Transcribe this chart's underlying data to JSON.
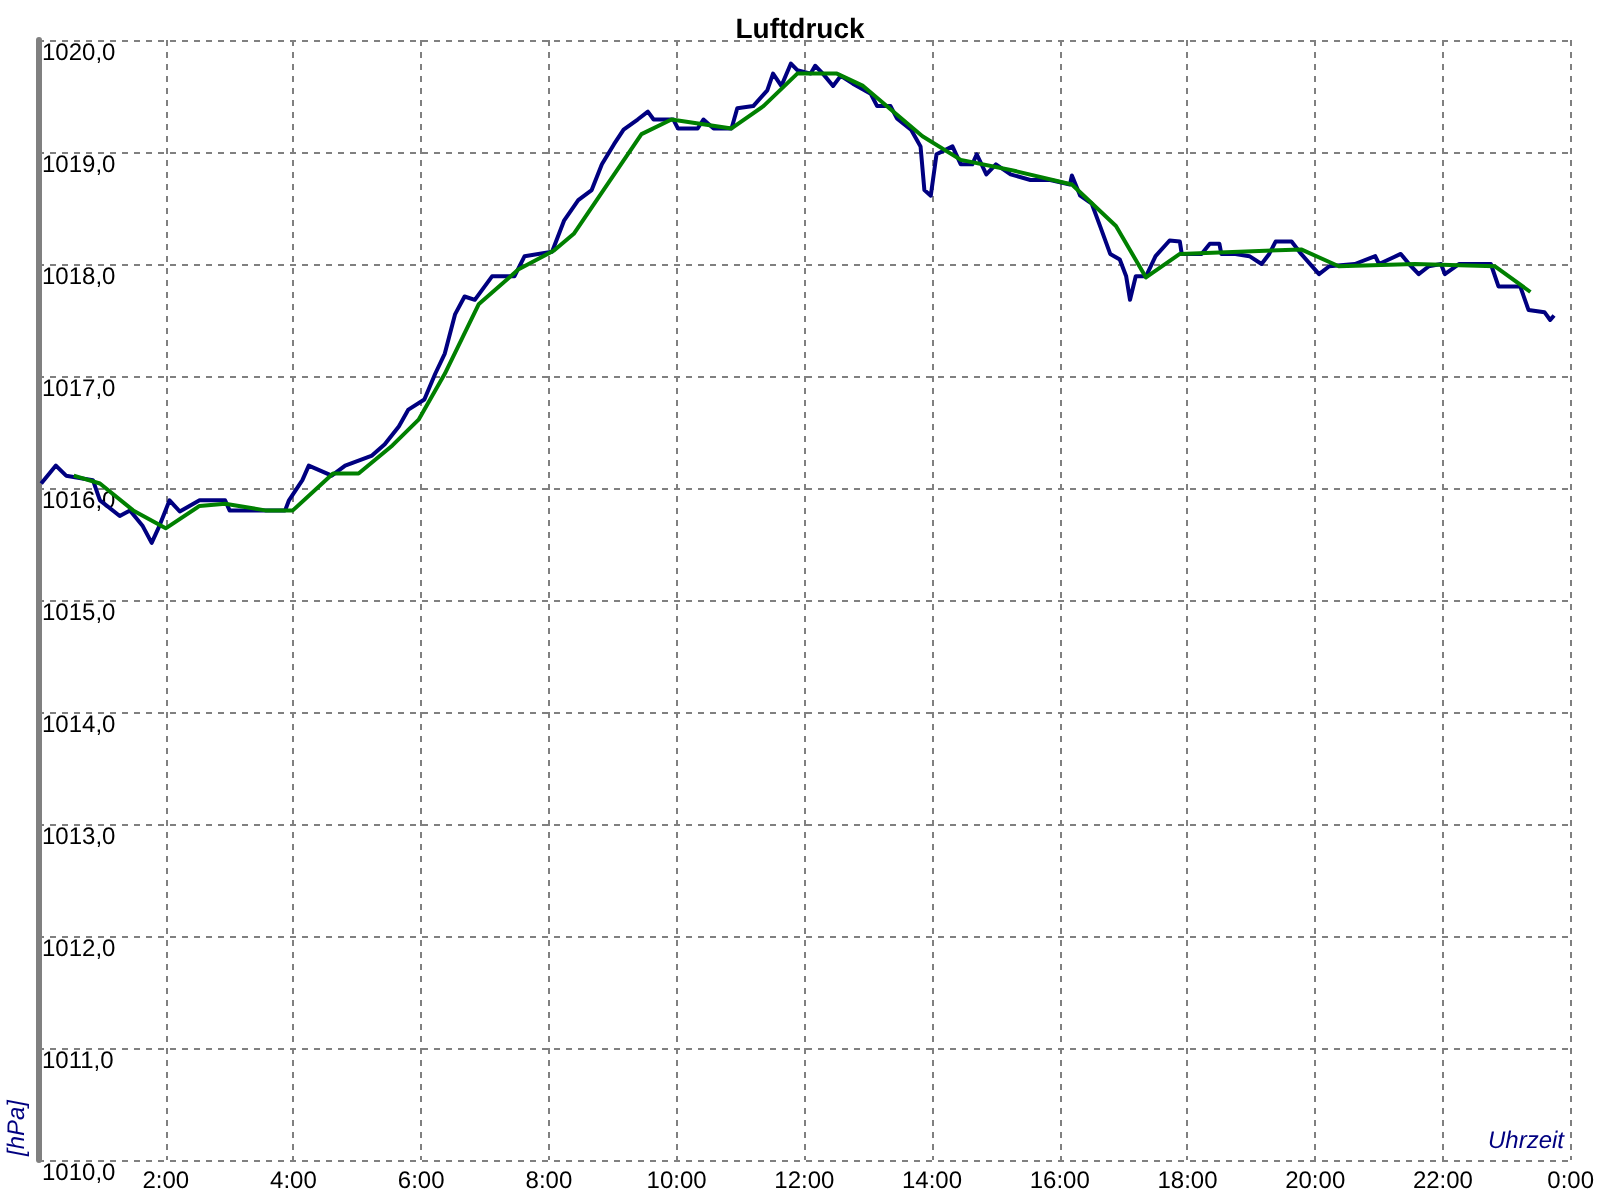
{
  "chart_data": {
    "type": "line",
    "title": "Luftdruck",
    "xlabel": "Uhrzeit",
    "ylabel": "[hPa]",
    "xlim": [
      0,
      24
    ],
    "ylim": [
      1010,
      1020
    ],
    "xticks": [
      {
        "value": 0,
        "label": null
      },
      {
        "value": 2,
        "label": "2:00"
      },
      {
        "value": 4,
        "label": "4:00"
      },
      {
        "value": 6,
        "label": "6:00"
      },
      {
        "value": 8,
        "label": "8:00"
      },
      {
        "value": 10,
        "label": "10:00"
      },
      {
        "value": 12,
        "label": "12:00"
      },
      {
        "value": 14,
        "label": "14:00"
      },
      {
        "value": 16,
        "label": "16:00"
      },
      {
        "value": 18,
        "label": "18:00"
      },
      {
        "value": 20,
        "label": "20:00"
      },
      {
        "value": 22,
        "label": "22:00"
      },
      {
        "value": 24,
        "label": "0:00"
      }
    ],
    "yticks": [
      {
        "value": 1010,
        "label": "1010,0"
      },
      {
        "value": 1011,
        "label": "1011,0"
      },
      {
        "value": 1012,
        "label": "1012,0"
      },
      {
        "value": 1013,
        "label": "1013,0"
      },
      {
        "value": 1014,
        "label": "1014,0"
      },
      {
        "value": 1015,
        "label": "1015,0"
      },
      {
        "value": 1016,
        "label": "1016,0"
      },
      {
        "value": 1017,
        "label": "1017,0"
      },
      {
        "value": 1018,
        "label": "1018,0"
      },
      {
        "value": 1019,
        "label": "1019,0"
      },
      {
        "value": 1020,
        "label": "1020,0"
      }
    ],
    "grid": true,
    "marker": "none",
    "line_style": "solid",
    "series": [
      {
        "color": "#000080",
        "x": [
          0.05,
          0.28,
          0.44,
          0.86,
          0.97,
          1.28,
          1.44,
          1.64,
          1.78,
          1.9,
          2.06,
          2.22,
          2.53,
          2.93,
          3.0,
          3.87,
          3.93,
          4.14,
          4.24,
          4.6,
          4.81,
          5.23,
          5.43,
          5.65,
          5.8,
          6.05,
          6.22,
          6.37,
          6.53,
          6.68,
          6.84,
          7.11,
          7.46,
          7.62,
          8.05,
          8.24,
          8.46,
          8.67,
          8.83,
          9.02,
          9.17,
          9.39,
          9.55,
          9.64,
          9.95,
          10.02,
          10.33,
          10.42,
          10.58,
          10.86,
          10.95,
          11.2,
          11.42,
          11.51,
          11.64,
          11.79,
          11.89,
          12.1,
          12.17,
          12.29,
          12.45,
          12.57,
          12.76,
          13.04,
          13.14,
          13.35,
          13.45,
          13.67,
          13.82,
          13.88,
          13.98,
          14.07,
          14.32,
          14.45,
          14.63,
          14.7,
          14.85,
          15.0,
          15.23,
          15.54,
          15.85,
          16.16,
          16.19,
          16.32,
          16.5,
          16.63,
          16.79,
          16.94,
          17.04,
          17.1,
          17.19,
          17.35,
          17.5,
          17.72,
          17.88,
          17.91,
          18.22,
          18.35,
          18.5,
          18.53,
          18.75,
          18.97,
          19.16,
          19.28,
          19.38,
          19.63,
          19.78,
          20.06,
          20.22,
          20.62,
          20.94,
          21.0,
          21.34,
          21.47,
          21.62,
          21.78,
          21.97,
          22.03,
          22.25,
          22.75,
          22.87,
          23.21,
          23.34,
          23.59,
          23.68,
          23.74
        ],
        "values": [
          1016.04,
          1016.2,
          1016.11,
          1016.07,
          1015.89,
          1015.75,
          1015.8,
          1015.66,
          1015.51,
          1015.66,
          1015.89,
          1015.79,
          1015.89,
          1015.89,
          1015.8,
          1015.8,
          1015.89,
          1016.07,
          1016.2,
          1016.11,
          1016.2,
          1016.29,
          1016.39,
          1016.55,
          1016.7,
          1016.79,
          1017.02,
          1017.2,
          1017.55,
          1017.71,
          1017.68,
          1017.89,
          1017.89,
          1018.07,
          1018.11,
          1018.39,
          1018.57,
          1018.66,
          1018.89,
          1019.07,
          1019.2,
          1019.29,
          1019.36,
          1019.29,
          1019.29,
          1019.21,
          1019.21,
          1019.29,
          1019.21,
          1019.21,
          1019.39,
          1019.41,
          1019.55,
          1019.7,
          1019.59,
          1019.79,
          1019.73,
          1019.7,
          1019.77,
          1019.7,
          1019.59,
          1019.68,
          1019.61,
          1019.52,
          1019.41,
          1019.41,
          1019.3,
          1019.2,
          1019.05,
          1018.66,
          1018.61,
          1018.98,
          1019.05,
          1018.89,
          1018.89,
          1018.98,
          1018.8,
          1018.89,
          1018.8,
          1018.75,
          1018.75,
          1018.71,
          1018.79,
          1018.61,
          1018.54,
          1018.34,
          1018.09,
          1018.04,
          1017.89,
          1017.68,
          1017.89,
          1017.89,
          1018.07,
          1018.21,
          1018.2,
          1018.09,
          1018.09,
          1018.18,
          1018.18,
          1018.09,
          1018.09,
          1018.07,
          1018.0,
          1018.09,
          1018.2,
          1018.2,
          1018.09,
          1017.91,
          1017.98,
          1018.0,
          1018.07,
          1018.0,
          1018.09,
          1018.0,
          1017.91,
          1017.98,
          1018.0,
          1017.91,
          1018.0,
          1018.0,
          1017.8,
          1017.8,
          1017.59,
          1017.57,
          1017.5,
          1017.54
        ]
      },
      {
        "color": "#008000",
        "x": [
          0.56,
          0.97,
          1.49,
          2.0,
          2.53,
          2.93,
          3.56,
          3.99,
          4.62,
          5.02,
          5.55,
          5.96,
          6.37,
          6.9,
          7.52,
          8.08,
          8.39,
          9.45,
          9.92,
          10.86,
          11.36,
          11.89,
          12.51,
          12.92,
          13.85,
          14.45,
          15.23,
          16.19,
          16.88,
          17.35,
          17.88,
          19.78,
          20.37,
          21.56,
          22.81,
          23.37
        ],
        "values": [
          1016.11,
          1016.04,
          1015.8,
          1015.64,
          1015.84,
          1015.86,
          1015.8,
          1015.8,
          1016.13,
          1016.13,
          1016.38,
          1016.61,
          1017.02,
          1017.64,
          1017.95,
          1018.12,
          1018.27,
          1019.16,
          1019.29,
          1019.21,
          1019.41,
          1019.7,
          1019.7,
          1019.59,
          1019.14,
          1018.93,
          1018.84,
          1018.71,
          1018.34,
          1017.88,
          1018.09,
          1018.13,
          1017.98,
          1018.0,
          1017.98,
          1017.75
        ]
      }
    ]
  }
}
